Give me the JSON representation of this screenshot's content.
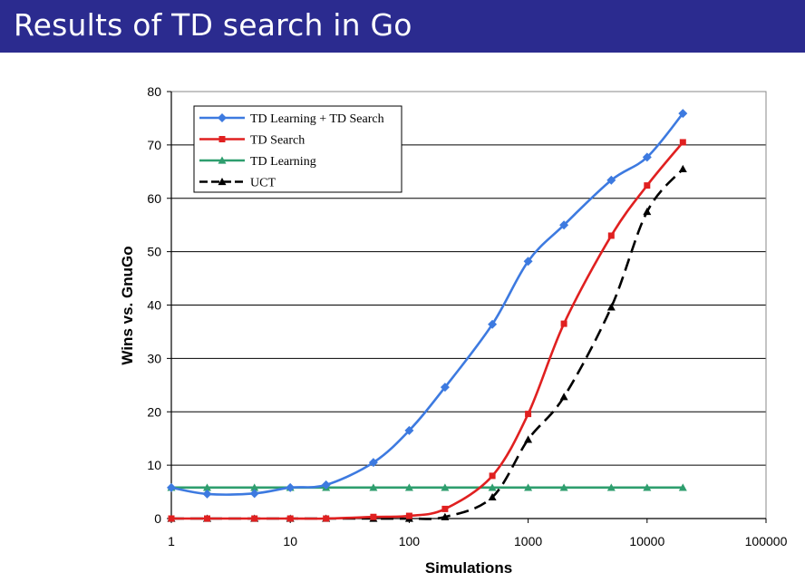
{
  "slide": {
    "title": "Results of TD search in Go"
  },
  "colors": {
    "title_bar": "#2b2b8f",
    "title_text": "#ffffff"
  },
  "chart_data": {
    "type": "line",
    "title": "",
    "xlabel": "Simulations",
    "ylabel": "Wins vs. GnuGo",
    "x_scale": "log",
    "xlim": [
      1,
      100000
    ],
    "ylim": [
      0,
      80
    ],
    "x_ticks": [
      "1",
      "10",
      "100",
      "1000",
      "10000",
      "100000"
    ],
    "y_ticks": [
      "0",
      "10",
      "20",
      "30",
      "40",
      "50",
      "60",
      "70",
      "80"
    ],
    "grid": "horizontal",
    "legend_position": "top-left",
    "x": [
      1,
      2,
      5,
      10,
      20,
      50,
      100,
      200,
      500,
      1000,
      2000,
      5000,
      10000,
      20000
    ],
    "series": [
      {
        "name": "TD Learning + TD Search",
        "color": "#3d7ae0",
        "marker": "diamond",
        "dash": "solid",
        "values": [
          5.8,
          4.6,
          4.7,
          5.8,
          6.3,
          10.5,
          16.5,
          24.6,
          36.4,
          48.2,
          55.0,
          63.4,
          67.7,
          75.9
        ]
      },
      {
        "name": "TD Search",
        "color": "#e02020",
        "marker": "square",
        "dash": "solid",
        "values": [
          0,
          0,
          0,
          0,
          0,
          0.3,
          0.5,
          1.8,
          8.0,
          19.6,
          36.5,
          53.0,
          62.4,
          70.5
        ]
      },
      {
        "name": "TD Learning",
        "color": "#2e9e6e",
        "marker": "triangle",
        "dash": "solid",
        "values": [
          5.8,
          5.8,
          5.8,
          5.8,
          5.8,
          5.8,
          5.8,
          5.8,
          5.8,
          5.8,
          5.8,
          5.8,
          5.8,
          5.8
        ]
      },
      {
        "name": "UCT",
        "color": "#000000",
        "marker": "triangle",
        "dash": "dashed",
        "values": [
          0,
          0,
          0,
          0,
          0,
          0,
          0,
          0.3,
          4.0,
          14.8,
          22.8,
          39.6,
          57.5,
          65.5
        ]
      }
    ]
  }
}
